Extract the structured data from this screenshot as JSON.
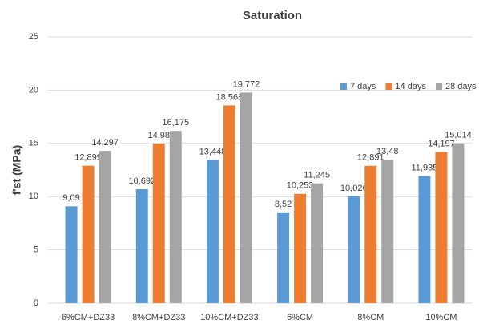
{
  "chart_data": {
    "type": "bar",
    "title": "Saturation",
    "ylabel": "f'st (MPa)",
    "categories": [
      "6%CM+DZ33",
      "8%CM+DZ33",
      "10%CM+DZ33",
      "6%CM",
      "8%CM",
      "10%CM"
    ],
    "series": [
      {
        "name": "7 days",
        "color": "#5b9bd5",
        "values": [
          9.09,
          10.692,
          13.448,
          8.52,
          10.026,
          11.935
        ],
        "value_labels": [
          "9,09",
          "10,692",
          "13,448",
          "8,52",
          "10,026",
          "11,935"
        ]
      },
      {
        "name": "14 days",
        "color": "#ed7d31",
        "values": [
          12.899,
          14.98,
          18.568,
          10.253,
          12.891,
          14.197
        ],
        "value_labels": [
          "12,899",
          "14,98",
          "18,568",
          "10,253",
          "12,891",
          "14,197"
        ]
      },
      {
        "name": "28 days",
        "color": "#a5a5a5",
        "values": [
          14.297,
          16.175,
          19.772,
          11.245,
          13.48,
          15.014
        ],
        "value_labels": [
          "14,297",
          "16,175",
          "19,772",
          "11,245",
          "13,48",
          "15,014"
        ]
      }
    ],
    "ylim": [
      0,
      25
    ],
    "yticks": [
      0,
      5,
      10,
      15,
      20,
      25
    ],
    "grid": true,
    "legend": "top-right"
  }
}
